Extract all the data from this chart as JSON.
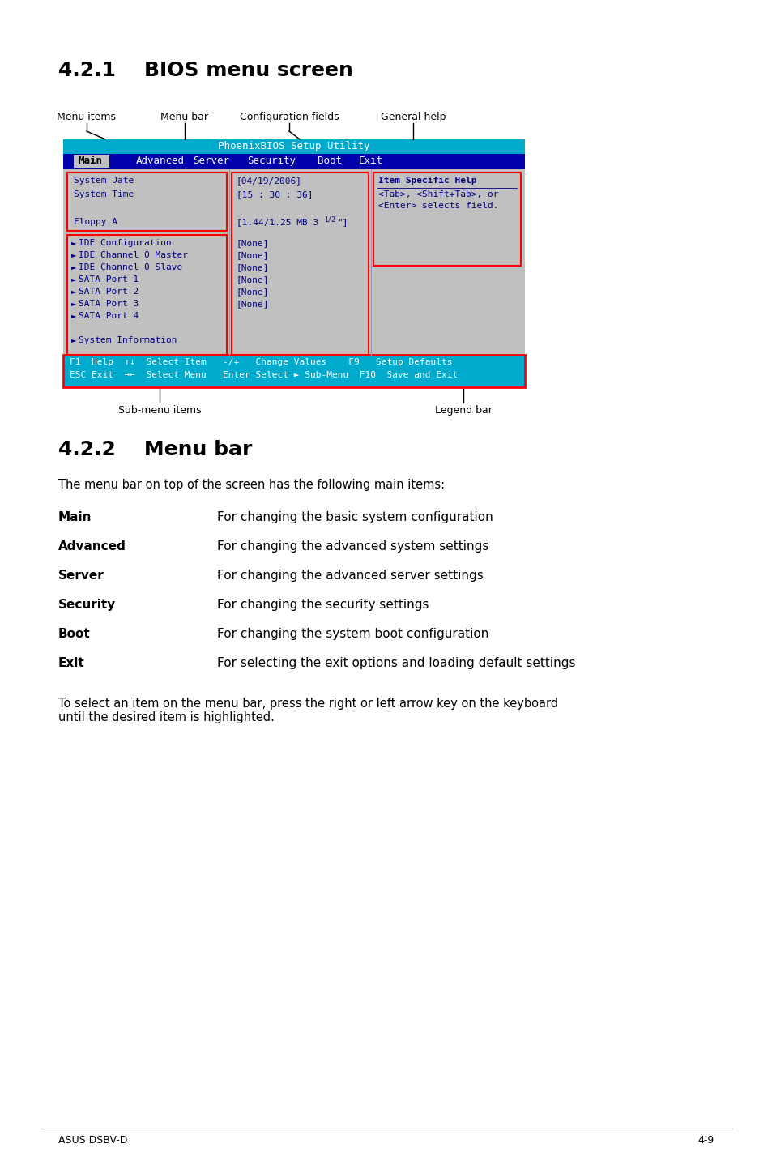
{
  "title_421": "4.2.1    BIOS menu screen",
  "title_422": "4.2.2    Menu bar",
  "section_421_labels": [
    "Menu items",
    "Menu bar",
    "Configuration fields",
    "General help"
  ],
  "bios_title_bar_text": "PhoenixBIOS Setup Utility",
  "bios_title_bar_color": "#00AACC",
  "menu_bar_color": "#0000AA",
  "menu_bar_items": [
    "Main",
    "Advanced",
    "Server",
    "Security",
    "Boot",
    "Exit"
  ],
  "bios_bg_color": "#C0C0C0",
  "bios_text_color": "#000080",
  "legend_bar_color": "#00AACC",
  "left_panel_items": [
    "System Date",
    "System Time",
    "",
    "Floppy A"
  ],
  "left_panel_sub": [
    "IDE Configuration",
    "IDE Channel 0 Master",
    "IDE Channel 0 Slave",
    "SATA Port 1",
    "SATA Port 2",
    "SATA Port 3",
    "SATA Port 4",
    "",
    "System Information"
  ],
  "mid_panel_top": [
    "[04/19/2006]",
    "[15 : 30 : 36]",
    "",
    "[1.44/1.25 MB 3"
  ],
  "mid_panel_sub": [
    "[None]",
    "[None]",
    "[None]",
    "[None]",
    "[None]",
    "[None]"
  ],
  "right_panel_title": "Item Specific Help",
  "right_panel_line1": "<Tab>, <Shift+Tab>, or",
  "right_panel_line2": "<Enter> selects field.",
  "legend_line1": "F1  Help  ↑↓  Select Item   -/+   Change Values    F9   Setup Defaults",
  "legend_line2": "ESC Exit  →←  Select Menu   Enter Select ► Sub-Menu  F10  Save and Exit",
  "bottom_labels": [
    "Sub-menu items",
    "Legend bar"
  ],
  "menu_bar_text": "The menu bar on top of the screen has the following main items:",
  "menu_items_desc": [
    [
      "Main",
      "For changing the basic system configuration"
    ],
    [
      "Advanced",
      "For changing the advanced system settings"
    ],
    [
      "Server",
      "For changing the advanced server settings"
    ],
    [
      "Security",
      "For changing the security settings"
    ],
    [
      "Boot",
      "For changing the system boot configuration"
    ],
    [
      "Exit",
      "For selecting the exit options and loading default settings"
    ]
  ],
  "final_text": "To select an item on the menu bar, press the right or left arrow key on the keyboard\nuntil the desired item is highlighted.",
  "footer_left": "ASUS DSBV-D",
  "footer_right": "4-9",
  "page_bg": "#FFFFFF"
}
